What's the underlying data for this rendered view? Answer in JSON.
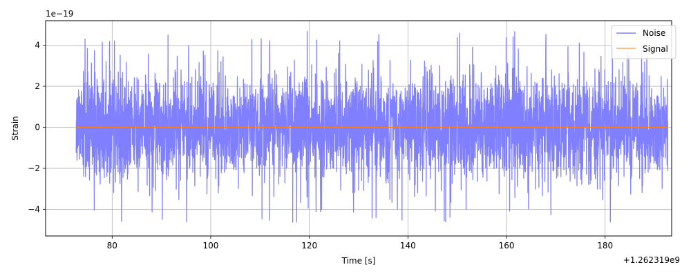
{
  "chart_data": {
    "type": "line",
    "title": "",
    "xlabel": "Time [s]",
    "ylabel": "Strain",
    "x_offset_label": "+1.262319e9",
    "y_multiplier_label": "1e−19",
    "xlim": [
      66.5,
      193.5
    ],
    "ylim": [
      -5.3,
      5.2
    ],
    "x_ticks": [
      80,
      100,
      120,
      140,
      160,
      180
    ],
    "x_tick_labels": [
      "80",
      "100",
      "120",
      "140",
      "160",
      "180"
    ],
    "y_ticks": [
      -4,
      -2,
      0,
      2,
      4
    ],
    "y_tick_labels": [
      "−4",
      "−2",
      "0",
      "2",
      "4"
    ],
    "grid": true,
    "legend_position": "top-right",
    "series": [
      {
        "name": "Noise",
        "color": "#7f7fff",
        "x_start": 72.7,
        "x_end": 192.7,
        "typical_amplitude": 2.1,
        "peak_max": 4.75,
        "peak_min": -4.8
      },
      {
        "name": "Signal",
        "color": "#ff7f0e",
        "x_start": 72.7,
        "x_end": 192.7,
        "value": 0
      }
    ],
    "legend": [
      {
        "label": "Noise",
        "color": "#7f7fff"
      },
      {
        "label": "Signal",
        "color": "#ff7f0e"
      }
    ]
  }
}
